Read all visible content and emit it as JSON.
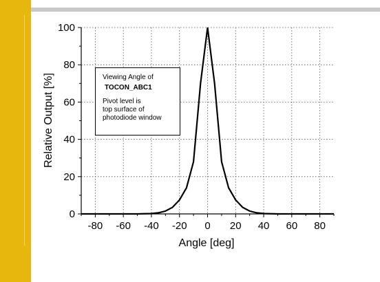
{
  "chart_data": {
    "type": "line",
    "xlabel": "Angle [deg]",
    "ylabel": "Relative Output [%]",
    "xlim": [
      -90,
      90
    ],
    "ylim": [
      0,
      100
    ],
    "x_ticks": [
      -80,
      -60,
      -40,
      -20,
      0,
      20,
      40,
      60,
      80
    ],
    "y_ticks": [
      0,
      20,
      40,
      60,
      80,
      100
    ],
    "grid": true,
    "series": [
      {
        "color": "#000000",
        "x": [
          -90,
          -80,
          -60,
          -50,
          -40,
          -35,
          -30,
          -25,
          -20,
          -15,
          -10,
          -5,
          0,
          5,
          10,
          15,
          20,
          25,
          30,
          35,
          40,
          50,
          60,
          80,
          90
        ],
        "y": [
          0,
          0,
          0,
          0,
          0.2,
          0.6,
          1.5,
          3.5,
          7.5,
          14,
          28,
          70,
          100,
          70,
          28,
          14,
          7.5,
          3.5,
          1.5,
          0.6,
          0.2,
          0,
          0,
          0,
          0
        ]
      }
    ],
    "annotation": {
      "title": "Viewing Angle of",
      "device": "TOCON_ABC1",
      "note": [
        "Pivot level is",
        "top surface of",
        "photodiode window"
      ]
    }
  }
}
